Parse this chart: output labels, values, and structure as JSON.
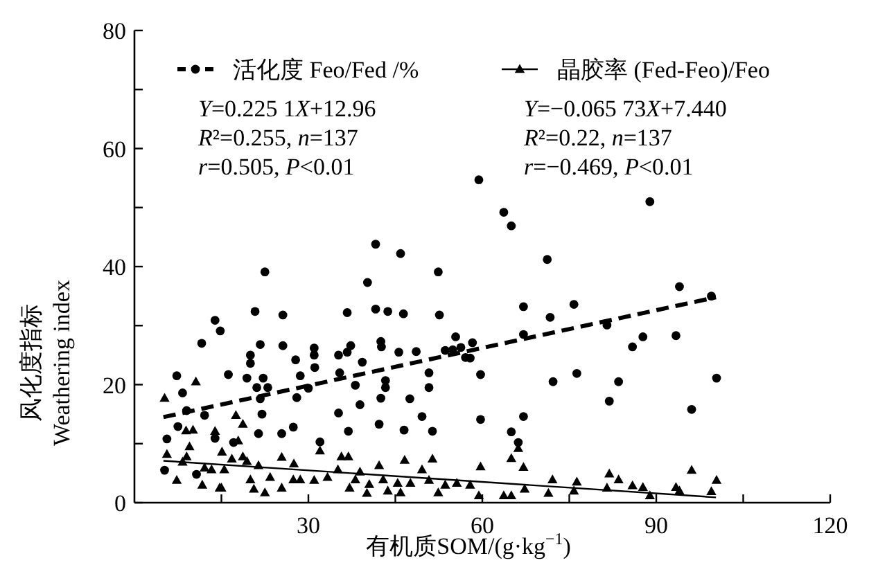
{
  "chart_data": {
    "type": "scatter",
    "xlabel": "有机质SOM/(g·kg$^{−1}$)",
    "ylabel": "风化度指标\nWeathering index",
    "xlim": [
      0,
      120
    ],
    "ylim": [
      0,
      80
    ],
    "xticks": [
      {
        "value": 15,
        "label": null
      },
      30,
      {
        "value": 45,
        "label": null
      },
      60,
      {
        "value": 75,
        "label": null
      },
      90,
      {
        "value": 105,
        "label": null
      },
      120
    ],
    "yticks": [
      0,
      {
        "value": 10,
        "label": null
      },
      20,
      {
        "value": 30,
        "label": null
      },
      40,
      {
        "value": 50,
        "label": null
      },
      60,
      {
        "value": 70,
        "label": null
      },
      80
    ],
    "grid": false,
    "legend": "top",
    "annotations": [
      "Y=0.225 1X+12.96",
      "R²=0.255, n=137",
      "r=0.505, P<0.01",
      "Y=−0.065 73X+7.440",
      "R²=0.22, n=137",
      "r=−0.469, P<0.01"
    ],
    "series": [
      {
        "type": "scatter",
        "name": "活化度 Feo/Fed /%",
        "color": "#000000",
        "marker": "circle",
        "x": [
          5.2,
          5.6,
          7.3,
          8.3,
          9.0,
          7.5,
          10.7,
          11.6,
          12.1,
          13.9,
          14.8,
          13.9,
          16.2,
          17.1,
          19.4,
          20.0,
          20.0,
          20.8,
          21.4,
          21.7,
          22.2,
          22.5,
          21.1,
          21.7,
          22.0,
          23.0,
          25.4,
          25.6,
          25.6,
          27.4,
          27.8,
          28.0,
          28.6,
          30.0,
          31.0,
          31.0,
          31.1,
          32.0,
          35.2,
          35.2,
          35.4,
          36.7,
          36.9,
          36.7,
          37.3,
          38.1,
          38.9,
          39.3,
          40.2,
          41.6,
          41.6,
          42.2,
          42.5,
          42.5,
          42.6,
          43.3,
          43.3,
          43.7,
          45.6,
          45.9,
          46.4,
          46.5,
          47.5,
          48.6,
          49.6,
          50.8,
          50.8,
          51.4,
          52.4,
          52.6,
          53.6,
          55.4,
          56.3,
          57.9,
          58.3,
          59.4,
          59.7,
          59.7,
          54.9,
          57.1,
          63.7,
          65.0,
          67.1,
          67.1,
          67.1,
          65.0,
          66.2,
          71.2,
          71.7,
          72.2,
          75.8,
          76.3,
          81.5,
          81.9,
          83.5,
          85.9,
          87.7,
          88.9,
          93.4,
          94.0,
          96.1,
          99.5,
          100.4
        ],
        "values": [
          5.5,
          10.8,
          21.5,
          18.6,
          15.6,
          12.9,
          4.8,
          27.0,
          14.8,
          30.9,
          29.1,
          10.9,
          21.7,
          10.2,
          21.1,
          25.0,
          23.6,
          32.4,
          11.7,
          26.8,
          21.1,
          39.1,
          19.5,
          17.6,
          15.0,
          19.5,
          11.7,
          26.6,
          31.8,
          12.8,
          24.2,
          17.8,
          21.5,
          19.4,
          25.0,
          26.2,
          22.9,
          10.3,
          15.2,
          25.0,
          22.0,
          32.2,
          12.1,
          25.5,
          26.6,
          19.9,
          16.6,
          23.8,
          37.3,
          43.8,
          32.8,
          13.3,
          17.7,
          27.3,
          26.4,
          20.7,
          19.5,
          32.4,
          25.5,
          42.2,
          32.0,
          12.3,
          17.6,
          25.6,
          14.6,
          22.0,
          19.5,
          12.1,
          39.1,
          31.8,
          25.8,
          28.1,
          26.3,
          24.5,
          27.1,
          54.7,
          21.7,
          14.1,
          25.9,
          24.6,
          49.2,
          46.9,
          33.2,
          28.5,
          14.6,
          12.0,
          10.2,
          41.2,
          31.4,
          20.5,
          33.6,
          21.9,
          30.1,
          17.2,
          20.5,
          26.4,
          28.1,
          51.0,
          28.3,
          36.6,
          15.8,
          35.0,
          21.1
        ]
      },
      {
        "type": "scatter",
        "name": "晶胶率 (Fed-Feo)/Feo",
        "color": "#000000",
        "marker": "triangle",
        "x": [
          5.2,
          5.6,
          7.3,
          8.3,
          8.9,
          10.1,
          10.6,
          9.0,
          9.5,
          12.1,
          11.7,
          13.3,
          14.7,
          15.0,
          13.9,
          15.1,
          15.5,
          16.8,
          17.5,
          18.7,
          17.9,
          18.7,
          19.4,
          20.0,
          20.6,
          21.4,
          22.5,
          23.4,
          25.4,
          25.4,
          27.4,
          27.5,
          28.6,
          31.0,
          32.0,
          33.3,
          35.1,
          35.7,
          36.9,
          37.1,
          38.1,
          38.9,
          40.1,
          40.5,
          42.2,
          42.9,
          43.7,
          45.4,
          46.6,
          45.9,
          47.6,
          49.6,
          50.8,
          51.4,
          52.4,
          53.6,
          55.6,
          57.9,
          59.7,
          59.4,
          63.7,
          65.0,
          65.0,
          66.2,
          67.1,
          67.3,
          71.4,
          72.1,
          75.8,
          76.3,
          81.5,
          81.9,
          83.5,
          85.9,
          87.7,
          88.9,
          93.4,
          94.0,
          96.1,
          99.5,
          100.4
        ],
        "values": [
          17.7,
          8.2,
          3.8,
          6.9,
          12.2,
          12.3,
          20.5,
          7.8,
          9.5,
          5.9,
          3.0,
          5.6,
          2.5,
          2.5,
          12.1,
          8.6,
          5.6,
          7.4,
          14.8,
          13.3,
          10.5,
          7.8,
          7.0,
          3.9,
          2.3,
          6.3,
          1.7,
          4.3,
          7.7,
          2.5,
          3.9,
          6.6,
          3.9,
          3.8,
          8.8,
          4.3,
          5.6,
          7.8,
          7.8,
          2.5,
          3.9,
          5.2,
          1.6,
          3.1,
          6.3,
          3.9,
          2.0,
          3.3,
          7.2,
          1.7,
          3.3,
          5.6,
          3.8,
          7.4,
          1.7,
          3.0,
          3.3,
          3.0,
          6.1,
          1.2,
          1.2,
          1.2,
          7.5,
          9.2,
          6.0,
          2.3,
          1.6,
          3.9,
          2.0,
          3.5,
          2.5,
          4.9,
          3.9,
          2.9,
          2.6,
          1.2,
          2.6,
          2.0,
          5.5,
          1.9,
          3.8
        ]
      },
      {
        "type": "line",
        "color": "#000000",
        "line_style": "dashed",
        "x": [
          5,
          100.3
        ],
        "values": [
          14.5,
          34.8
        ]
      },
      {
        "type": "line",
        "color": "#000000",
        "line_style": "solid",
        "x": [
          5,
          100.3
        ],
        "values": [
          7.1,
          0.9
        ]
      }
    ]
  }
}
